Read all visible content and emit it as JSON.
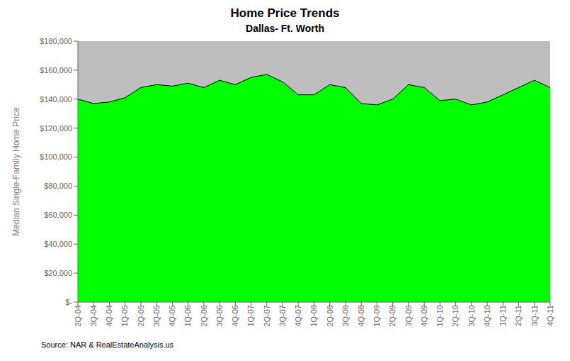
{
  "chart_data": {
    "type": "area",
    "title": "Home Price Trends",
    "subtitle": "Dallas- Ft. Worth",
    "ylabel": "Median Single-Family Home Price",
    "source": "Source: NAR & RealEstateAnalysis.us",
    "categories": [
      "2Q-04",
      "3Q-04",
      "4Q-04",
      "1Q-05",
      "2Q-05",
      "3Q-05",
      "4Q-05",
      "1Q-06",
      "2Q-06",
      "3Q-06",
      "4Q-06",
      "1Q-07",
      "2Q-07",
      "3Q-07",
      "4Q-07",
      "1Q-08",
      "2Q-08",
      "3Q-08",
      "4Q-08",
      "1Q-09",
      "2Q-09",
      "3Q-09",
      "4Q-09",
      "1Q-10",
      "2Q-10",
      "3Q-10",
      "4Q-10",
      "1Q-11",
      "2Q-11",
      "3Q-11",
      "4Q-11"
    ],
    "values": [
      140000,
      137000,
      138000,
      141000,
      148000,
      150000,
      149000,
      151000,
      148000,
      153000,
      150000,
      155000,
      157000,
      152000,
      143000,
      143000,
      150000,
      148000,
      137000,
      136000,
      140000,
      150000,
      148000,
      139000,
      140000,
      136000,
      138000,
      143000,
      148000,
      153000,
      148000
    ],
    "color": "#00FF00",
    "ylim": [
      0,
      180000
    ],
    "yticks": [
      {
        "value": 0,
        "label": "$-"
      },
      {
        "value": 20000,
        "label": "$20,000"
      },
      {
        "value": 40000,
        "label": "$40,000"
      },
      {
        "value": 60000,
        "label": "$60,000"
      },
      {
        "value": 80000,
        "label": "$80,000"
      },
      {
        "value": 100000,
        "label": "$100,000"
      },
      {
        "value": 120000,
        "label": "$120,000"
      },
      {
        "value": 140000,
        "label": "$140,000"
      },
      {
        "value": 160000,
        "label": "$160,000"
      },
      {
        "value": 180000,
        "label": "$180,000"
      }
    ],
    "grid": false
  }
}
